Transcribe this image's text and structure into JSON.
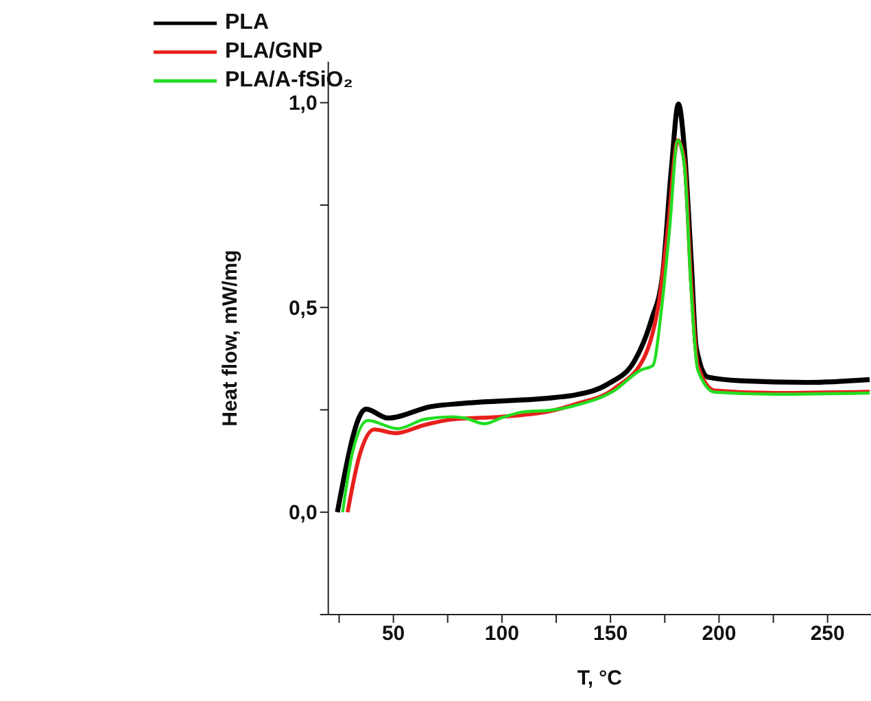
{
  "chart_data": {
    "type": "line",
    "xlabel": "T, °C",
    "ylabel": "Heat flow, mW/mg",
    "xlim": [
      20,
      270
    ],
    "ylim": [
      -0.25,
      1.1
    ],
    "xticks": [
      {
        "value": 25,
        "label": null
      },
      50,
      {
        "value": 75,
        "label": null
      },
      100,
      {
        "value": 125,
        "label": null
      },
      150,
      {
        "value": 175,
        "label": null
      },
      200,
      {
        "value": 225,
        "label": null
      },
      250
    ],
    "yticks": [
      {
        "value": -0.25,
        "label": null
      },
      {
        "value": 0,
        "label": "0,0"
      },
      {
        "value": 0.25,
        "label": null
      },
      {
        "value": 0.5,
        "label": "0,5"
      },
      {
        "value": 0.75,
        "label": null
      },
      {
        "value": 1,
        "label": "1,0"
      }
    ],
    "grid": false,
    "legend": "top left",
    "marker": "none",
    "line_style": "solid",
    "series": [
      {
        "name": "PLA",
        "color": "#000000",
        "x": [
          24.2,
          37.4,
          47.4,
          67.4,
          82.7,
          124,
          133.4,
          148.8,
          161,
          168.8,
          174,
          178,
          181.3,
          184,
          187.2,
          189.5,
          194.8,
          210,
          240.8,
          269.4
        ],
        "values": [
          0,
          0.252,
          0.23,
          0.258,
          0.266,
          0.28,
          0.286,
          0.313,
          0.369,
          0.469,
          0.58,
          0.836,
          0.997,
          0.89,
          0.613,
          0.402,
          0.33,
          0.321,
          0.317,
          0.324
        ]
      },
      {
        "name": "PLA/GNP",
        "color": "#e8201c",
        "x": [
          28.9,
          34.3,
          41.2,
          51.2,
          64.3,
          78,
          99.6,
          124,
          133.4,
          151.8,
          165.7,
          172.6,
          176.4,
          181,
          184,
          187.2,
          190.2,
          198,
          225.6,
          269.4
        ],
        "values": [
          0,
          0.137,
          0.202,
          0.193,
          0.213,
          0.227,
          0.233,
          0.249,
          0.263,
          0.302,
          0.38,
          0.524,
          0.69,
          0.908,
          0.858,
          0.558,
          0.358,
          0.297,
          0.291,
          0.294
        ]
      },
      {
        "name": "PLA/A-fSiO₂",
        "color": "#22dd22",
        "x": [
          26.6,
          31.2,
          38.2,
          52,
          64.3,
          76.6,
          82.7,
          92,
          99.6,
          108.8,
          124,
          133.4,
          151.8,
          164,
          169.5,
          173.4,
          177.2,
          181,
          184,
          187.2,
          190.2,
          198,
          225.6,
          269.4
        ],
        "values": [
          0,
          0.147,
          0.224,
          0.204,
          0.227,
          0.233,
          0.23,
          0.216,
          0.23,
          0.244,
          0.25,
          0.26,
          0.297,
          0.347,
          0.358,
          0.491,
          0.69,
          0.908,
          0.847,
          0.536,
          0.347,
          0.293,
          0.288,
          0.291
        ]
      }
    ]
  }
}
